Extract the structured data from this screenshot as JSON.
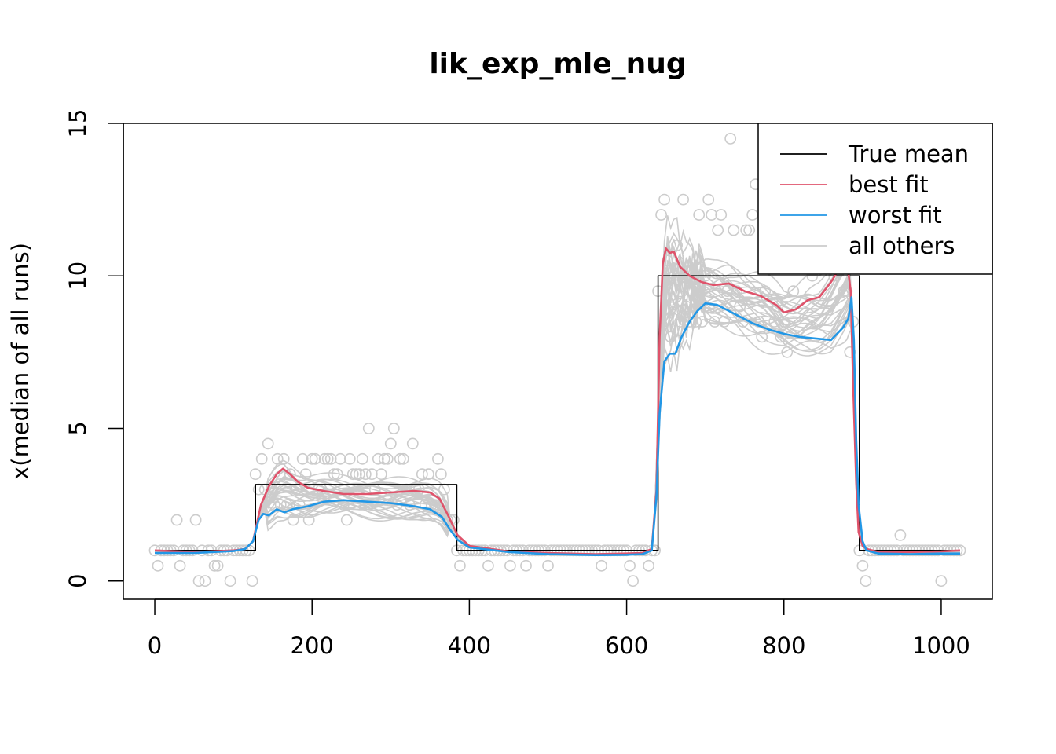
{
  "chart_data": {
    "type": "line",
    "title": "lik_exp_mle_nug",
    "xlabel": "",
    "ylabel": "x(median of all runs)",
    "xlim": [
      -40,
      1065
    ],
    "ylim": [
      -0.6,
      15
    ],
    "x_ticks": [
      0,
      200,
      400,
      600,
      800,
      1000
    ],
    "y_ticks": [
      0,
      5,
      10,
      15
    ],
    "x_tick_labels": [
      "0",
      "200",
      "400",
      "600",
      "800",
      "1000"
    ],
    "y_tick_labels": [
      "0",
      "5",
      "10",
      "15"
    ],
    "grid": false,
    "legend_position": "top-right",
    "legend": [
      "True mean",
      "best fit",
      "worst fit",
      "all others"
    ],
    "colors": {
      "true_mean": "#000000",
      "best_fit": "#DF536B",
      "worst_fit": "#2297E6",
      "others": "#CCCCCC",
      "points": "#CCCCCC"
    },
    "series": [
      {
        "name": "True mean",
        "x": [
          0,
          128,
          128,
          384,
          384,
          640,
          640,
          896,
          896,
          1024
        ],
        "y": [
          1,
          1,
          3.16,
          3.16,
          1,
          1,
          10,
          10,
          1,
          1
        ]
      },
      {
        "name": "best fit",
        "x": [
          0,
          50,
          100,
          115,
          125,
          135,
          145,
          155,
          163,
          172,
          182,
          195,
          215,
          240,
          270,
          300,
          330,
          350,
          362,
          372,
          385,
          400,
          450,
          500,
          560,
          600,
          620,
          632,
          638,
          642,
          646,
          650,
          655,
          660,
          668,
          680,
          695,
          710,
          730,
          750,
          770,
          790,
          800,
          815,
          830,
          845,
          860,
          872,
          880,
          885,
          888,
          892,
          895,
          900,
          905,
          920,
          960,
          1000,
          1024
        ],
        "y": [
          1,
          0.95,
          1,
          1.05,
          1.3,
          2.5,
          3.1,
          3.5,
          3.68,
          3.5,
          3.25,
          3.05,
          2.95,
          2.85,
          2.85,
          2.9,
          2.95,
          2.9,
          2.7,
          2.2,
          1.5,
          1.15,
          0.97,
          0.92,
          0.88,
          0.9,
          0.92,
          1.05,
          3.0,
          8.0,
          10.4,
          10.9,
          10.75,
          10.8,
          10.3,
          10.0,
          9.8,
          9.7,
          9.75,
          9.5,
          9.35,
          9.05,
          8.8,
          8.9,
          9.2,
          9.3,
          9.8,
          10.3,
          10.5,
          9.5,
          6.5,
          3.2,
          1.6,
          1.15,
          1.05,
          0.95,
          0.95,
          0.97,
          1.0
        ]
      },
      {
        "name": "worst fit",
        "x": [
          0,
          50,
          100,
          115,
          125,
          132,
          138,
          145,
          155,
          165,
          175,
          195,
          215,
          240,
          270,
          300,
          330,
          350,
          365,
          375,
          385,
          400,
          450,
          500,
          560,
          600,
          620,
          632,
          638,
          642,
          648,
          655,
          662,
          670,
          680,
          690,
          700,
          715,
          730,
          745,
          760,
          780,
          800,
          820,
          840,
          860,
          875,
          882,
          886,
          889,
          892,
          895,
          900,
          905,
          920,
          960,
          1000,
          1024
        ],
        "y": [
          0.92,
          0.92,
          0.98,
          1.05,
          1.3,
          2.0,
          2.2,
          2.15,
          2.35,
          2.25,
          2.35,
          2.45,
          2.6,
          2.65,
          2.6,
          2.55,
          2.45,
          2.35,
          2.1,
          1.7,
          1.35,
          1.1,
          0.95,
          0.88,
          0.85,
          0.86,
          0.88,
          1.0,
          2.8,
          5.5,
          7.2,
          7.45,
          7.45,
          8.0,
          8.5,
          8.85,
          9.1,
          9.05,
          8.85,
          8.65,
          8.45,
          8.25,
          8.1,
          8.0,
          7.95,
          7.9,
          8.3,
          8.6,
          9.3,
          7.9,
          4.6,
          2.5,
          1.3,
          1.0,
          0.9,
          0.88,
          0.9,
          0.9
        ]
      }
    ]
  }
}
